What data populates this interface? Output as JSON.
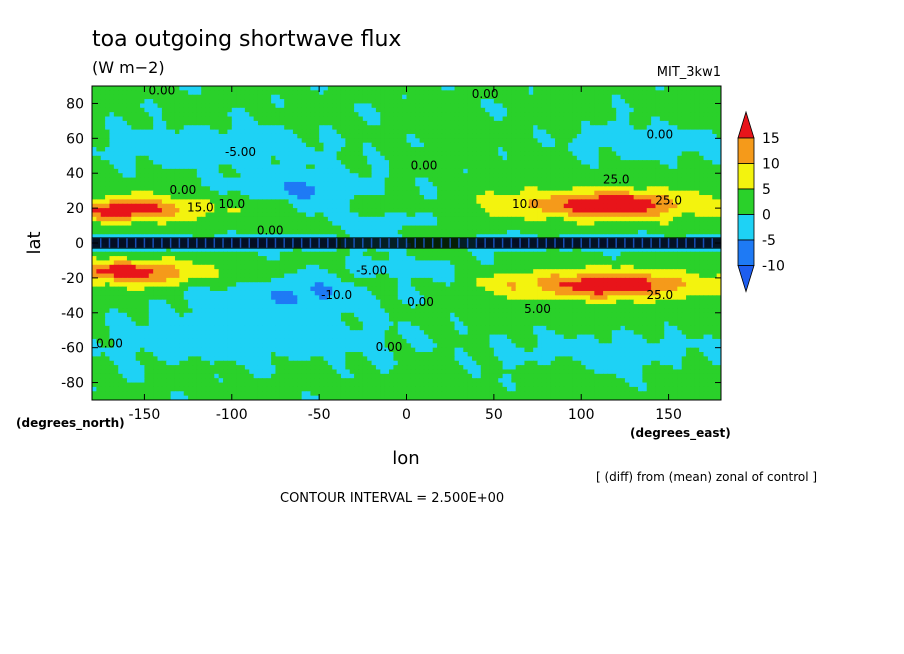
{
  "chart_data": {
    "type": "heatmap",
    "title": "toa outgoing shortwave flux",
    "units": "(W m−2)",
    "model": "MIT_3kw1",
    "xlabel": "lon",
    "ylabel": "lat",
    "x_units": "(degrees_east)",
    "y_units": "(degrees_north)",
    "note": "[ (diff) from (mean) zonal of control ]",
    "contour_interval": "CONTOUR INTERVAL = 2.500E+00",
    "xlim": [
      -180,
      180
    ],
    "ylim": [
      -90,
      90
    ],
    "x_ticks": [
      -150,
      -100,
      -50,
      0,
      50,
      100,
      150
    ],
    "y_ticks": [
      80,
      60,
      40,
      20,
      0,
      -20,
      -40,
      -60,
      -80
    ],
    "colorbar": {
      "ticks": [
        15,
        10,
        5,
        0,
        -5,
        -10
      ],
      "bins": [
        {
          "from": 15,
          "to": null,
          "color": "#e8141a"
        },
        {
          "from": 10,
          "to": 15,
          "color": "#f59a1a"
        },
        {
          "from": 5,
          "to": 10,
          "color": "#f3f30e"
        },
        {
          "from": 0,
          "to": 5,
          "color": "#2ad12a"
        },
        {
          "from": -5,
          "to": 0,
          "color": "#1ed2f5"
        },
        {
          "from": -10,
          "to": -5,
          "color": "#1e7af5"
        },
        {
          "from": null,
          "to": -10,
          "color": "#1e5ef0"
        }
      ]
    },
    "contour_labels": [
      {
        "text": "0.00",
        "lon": -140,
        "lat": 85
      },
      {
        "text": "0.00",
        "lon": 45,
        "lat": 83
      },
      {
        "text": "0.00",
        "lon": 145,
        "lat": 60
      },
      {
        "text": "-5.00",
        "lon": -95,
        "lat": 50
      },
      {
        "text": "0.00",
        "lon": 10,
        "lat": 42
      },
      {
        "text": "0.00",
        "lon": -128,
        "lat": 28
      },
      {
        "text": "15.0",
        "lon": -118,
        "lat": 18
      },
      {
        "text": "10.0",
        "lon": -100,
        "lat": 20
      },
      {
        "text": "0.00",
        "lon": -78,
        "lat": 5
      },
      {
        "text": "10.0",
        "lon": 68,
        "lat": 20
      },
      {
        "text": "25.0",
        "lon": 120,
        "lat": 34
      },
      {
        "text": "25.0",
        "lon": 150,
        "lat": 22
      },
      {
        "text": "-5.00",
        "lon": -20,
        "lat": -18
      },
      {
        "text": "-10.0",
        "lon": -40,
        "lat": -32
      },
      {
        "text": "0.00",
        "lon": 8,
        "lat": -36
      },
      {
        "text": "5.00",
        "lon": 75,
        "lat": -40
      },
      {
        "text": "25.0",
        "lon": 145,
        "lat": -32
      },
      {
        "text": "0.00",
        "lon": -170,
        "lat": -60
      },
      {
        "text": "0.00",
        "lon": -10,
        "lat": -62
      }
    ]
  }
}
